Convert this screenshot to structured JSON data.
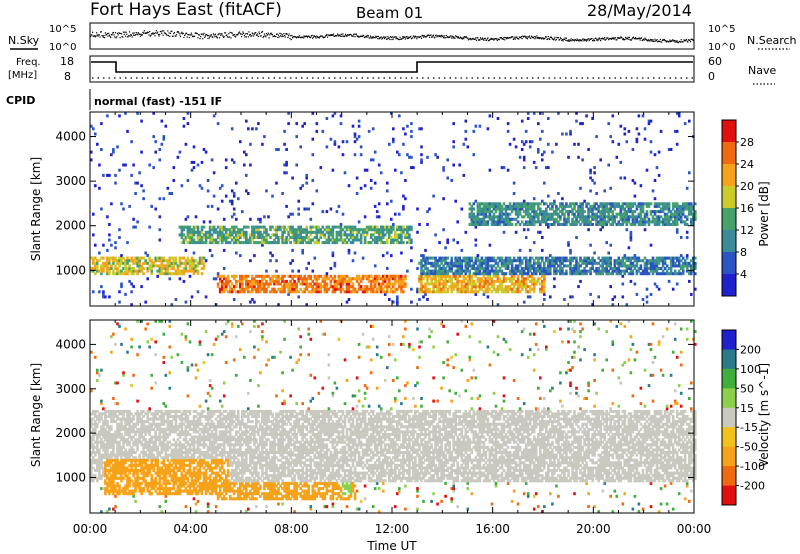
{
  "header": {
    "station": "Fort Hays East (fitACF)",
    "beam": "Beam 01",
    "date": "28/May/2014"
  },
  "status_panels": {
    "nsky_label": "N.Sky",
    "nsearch_label": "N.Search",
    "nsky_ticks": [
      "10^5",
      "10^0"
    ],
    "nsearch_ticks": [
      "10^5",
      "10^0"
    ],
    "freq_label_line1": "Freq.",
    "freq_label_line2": "[MHz]",
    "freq_ticks": [
      "18",
      "8"
    ],
    "nave_label": "Nave",
    "nave_ticks": [
      "60",
      "0"
    ],
    "cpid_label": "CPID",
    "cpid_text": "normal (fast) -151 IF"
  },
  "chart_data": [
    {
      "type": "heatmap",
      "name": "power",
      "xlabel": "Time UT",
      "ylabel": "Slant Range [km]",
      "xlim": [
        0,
        24
      ],
      "ylim": [
        200,
        4550
      ],
      "yticks": [
        1000,
        2000,
        3000,
        4000
      ],
      "xtick_labels": [
        "00:00",
        "04:00",
        "08:00",
        "12:00",
        "16:00",
        "20:00",
        "00:00"
      ],
      "colorbar": {
        "label": "Power [dB]",
        "ticks": [
          "28",
          "24",
          "20",
          "16",
          "12",
          "8",
          "4"
        ],
        "range": [
          0,
          30
        ]
      },
      "features": [
        {
          "t_start": 0.0,
          "t_end": 4.5,
          "range_start": 900,
          "range_end": 1300,
          "power": 20
        },
        {
          "t_start": 3.5,
          "t_end": 12.8,
          "range_start": 1600,
          "range_end": 2000,
          "power": 14
        },
        {
          "t_start": 5.0,
          "t_end": 12.5,
          "range_start": 500,
          "range_end": 900,
          "power": 26
        },
        {
          "t_start": 13.0,
          "t_end": 18.0,
          "range_start": 500,
          "range_end": 900,
          "power": 22
        },
        {
          "t_start": 13.0,
          "t_end": 24.0,
          "range_start": 900,
          "range_end": 1300,
          "power": 10
        },
        {
          "t_start": 15.0,
          "t_end": 24.0,
          "range_start": 2000,
          "range_end": 2500,
          "power": 12
        }
      ]
    },
    {
      "type": "heatmap",
      "name": "velocity",
      "xlabel": "Time UT",
      "ylabel": "Slant Range [km]",
      "xlim": [
        0,
        24
      ],
      "ylim": [
        200,
        4550
      ],
      "yticks": [
        1000,
        2000,
        3000,
        4000
      ],
      "xtick_labels": [
        "00:00",
        "04:00",
        "08:00",
        "12:00",
        "16:00",
        "20:00",
        "00:00"
      ],
      "colorbar": {
        "label": "Velocity [m s^-1]",
        "ticks": [
          "200",
          "100",
          "50",
          "15",
          "-15",
          "-50",
          "-100",
          "-200"
        ],
        "range": [
          -250,
          250
        ]
      },
      "features": [
        {
          "t_start": 0.0,
          "t_end": 24.0,
          "range_start": 900,
          "range_end": 2500,
          "velocity": 0
        },
        {
          "t_start": 0.5,
          "t_end": 5.5,
          "range_start": 600,
          "range_end": 1400,
          "velocity": -50
        },
        {
          "t_start": 5.0,
          "t_end": 10.5,
          "range_start": 500,
          "range_end": 900,
          "velocity": -50
        },
        {
          "t_start": 10.0,
          "t_end": 10.4,
          "range_start": 600,
          "range_end": 900,
          "velocity": 50
        }
      ]
    }
  ]
}
